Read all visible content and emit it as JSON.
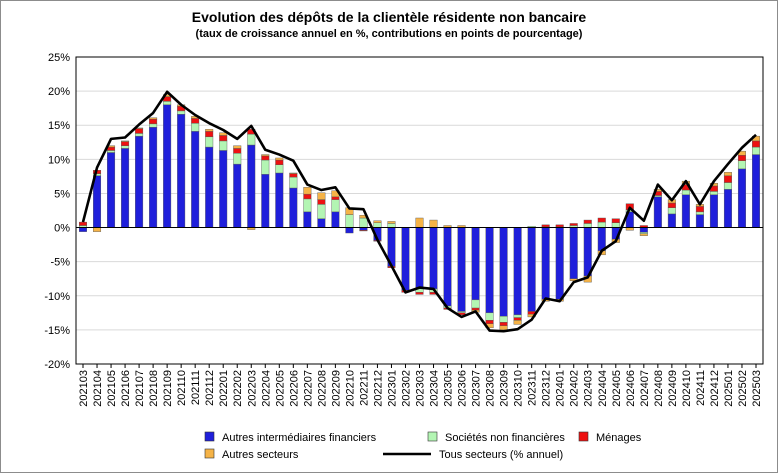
{
  "chart_data": {
    "type": "bar",
    "title": "Evolution des dépôts de la clientèle résidente non bancaire",
    "subtitle": "(taux de croissance annuel en %, contributions en points de pourcentage)",
    "ylim": [
      -20,
      25
    ],
    "yticks": [
      "-20%",
      "-15%",
      "-10%",
      "-5%",
      "0%",
      "5%",
      "10%",
      "15%",
      "20%",
      "25%"
    ],
    "grid": true,
    "legend_position": "bottom",
    "categories": [
      "202103",
      "202104",
      "202105",
      "202106",
      "202107",
      "202108",
      "202109",
      "202110",
      "202111",
      "202112",
      "202201",
      "202202",
      "202203",
      "202204",
      "202205",
      "202206",
      "202207",
      "202208",
      "202209",
      "202210",
      "202211",
      "202212",
      "202301",
      "202302",
      "202303",
      "202304",
      "202305",
      "202306",
      "202307",
      "202308",
      "202309",
      "202310",
      "202311",
      "202312",
      "202401",
      "202402",
      "202403",
      "202404",
      "202405",
      "202406",
      "202407",
      "202408",
      "202409",
      "202410",
      "202411",
      "202412",
      "202501",
      "202502",
      "202503"
    ],
    "series": [
      {
        "name": "Autres intermédiaires financiers",
        "color": "#1f1fdb",
        "values": [
          -0.6,
          7.6,
          11.0,
          11.6,
          13.4,
          14.7,
          18.0,
          16.6,
          14.1,
          11.8,
          11.3,
          9.3,
          12.1,
          7.8,
          8.0,
          5.8,
          2.3,
          1.3,
          2.3,
          -0.8,
          -0.4,
          -1.9,
          -5.7,
          -9.2,
          -8.8,
          -9.0,
          -11.5,
          -12.3,
          -10.6,
          -12.5,
          -13.0,
          -12.8,
          -12.3,
          -10.5,
          -10.5,
          -7.5,
          -7.1,
          -3.4,
          -1.7,
          2.3,
          -0.7,
          4.5,
          2.0,
          4.8,
          1.9,
          4.8,
          5.6,
          8.6,
          10.7
        ]
      },
      {
        "name": "Sociétés non financières",
        "color": "#b3f5b3",
        "values": [
          0.3,
          0.3,
          0.3,
          0.4,
          0.4,
          0.5,
          0.5,
          0.5,
          1.2,
          1.5,
          1.4,
          1.6,
          1.6,
          2.1,
          1.2,
          1.6,
          1.9,
          2.1,
          1.8,
          1.9,
          1.4,
          0.7,
          0.6,
          0.0,
          -0.7,
          -0.5,
          -0.3,
          -0.2,
          -1.2,
          -1.1,
          -0.9,
          -0.4,
          0.2,
          0.1,
          0.1,
          0.3,
          0.6,
          0.8,
          0.7,
          0.3,
          -0.2,
          0.2,
          0.9,
          0.7,
          0.4,
          0.5,
          1.0,
          1.2,
          1.1
        ]
      },
      {
        "name": "Ménages",
        "color": "#ee1111",
        "values": [
          0.5,
          0.5,
          0.5,
          0.6,
          0.7,
          0.7,
          0.7,
          0.7,
          0.7,
          0.8,
          0.8,
          0.7,
          0.7,
          0.6,
          0.7,
          0.5,
          0.7,
          0.7,
          0.4,
          0.0,
          -0.1,
          -0.1,
          -0.2,
          -0.3,
          -0.3,
          -0.3,
          -0.2,
          -0.3,
          -0.3,
          -0.5,
          -0.5,
          -0.4,
          -0.4,
          0.3,
          0.3,
          0.3,
          0.5,
          0.6,
          0.6,
          0.9,
          0.3,
          0.6,
          0.7,
          0.8,
          0.8,
          0.8,
          1.0,
          0.8,
          0.9
        ]
      },
      {
        "name": "Autres secteurs",
        "color": "#f5b347",
        "values": [
          0.0,
          -0.6,
          0.2,
          0.1,
          0.1,
          0.2,
          0.3,
          0.2,
          0.3,
          0.3,
          0.4,
          0.4,
          -0.3,
          0.2,
          0.3,
          0.1,
          1.0,
          1.0,
          0.9,
          1.0,
          0.4,
          0.3,
          0.3,
          0.0,
          1.4,
          1.1,
          0.3,
          0.3,
          -0.3,
          -0.6,
          -0.6,
          -0.6,
          -0.4,
          -0.3,
          -0.3,
          -0.3,
          -0.9,
          -0.6,
          -0.5,
          -0.4,
          -0.3,
          0.3,
          0.5,
          0.5,
          0.3,
          0.4,
          0.5,
          0.6,
          0.7
        ]
      },
      {
        "name": "Tous secteurs (% annuel)",
        "color": "#000000",
        "type": "line",
        "values": [
          0.8,
          8.8,
          13.0,
          13.2,
          15.1,
          16.8,
          19.9,
          18.0,
          16.5,
          15.3,
          14.3,
          13.0,
          14.9,
          11.4,
          10.7,
          9.8,
          6.3,
          5.5,
          5.9,
          2.8,
          2.7,
          -1.8,
          -5.6,
          -9.5,
          -8.8,
          -9.0,
          -11.8,
          -13.1,
          -12.3,
          -15.1,
          -15.2,
          -14.9,
          -13.5,
          -10.4,
          -10.8,
          -8.0,
          -7.3,
          -3.4,
          -2.0,
          2.9,
          1.0,
          6.3,
          4.0,
          6.8,
          3.4,
          6.8,
          9.3,
          11.7,
          13.6
        ]
      }
    ],
    "legend": {
      "row1": [
        "Autres intermédiaires financiers",
        "Sociétés non financières",
        "Ménages"
      ],
      "row2": [
        "Autres secteurs",
        "Tous secteurs (% annuel)"
      ]
    }
  }
}
